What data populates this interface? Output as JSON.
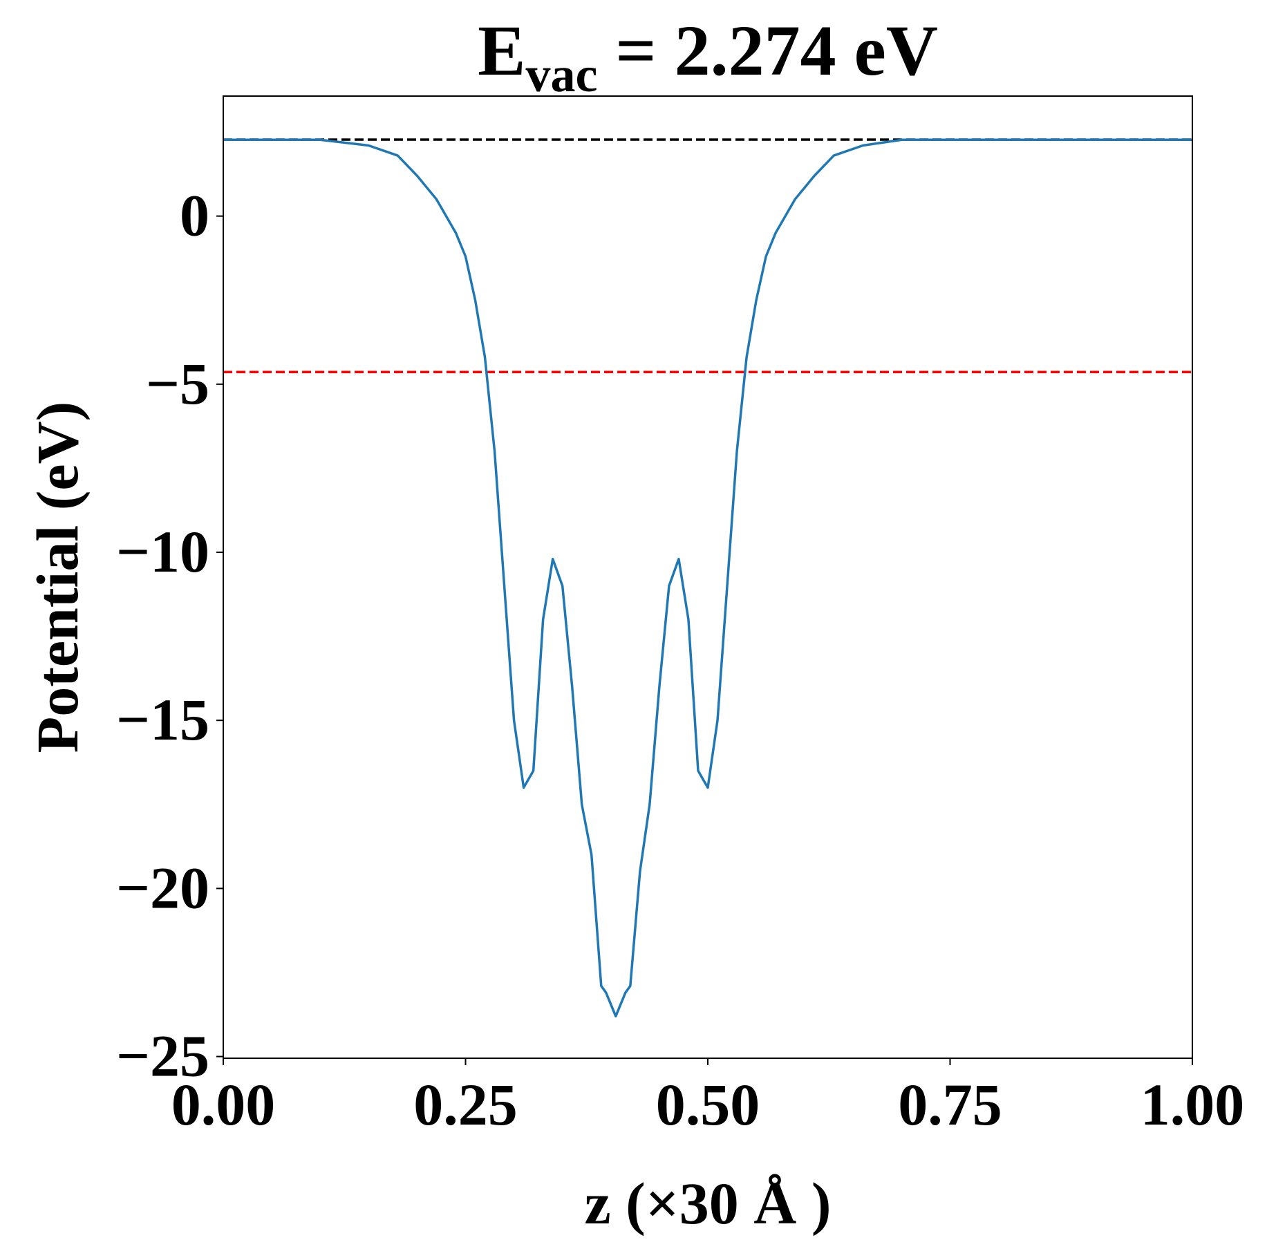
{
  "chart_data": {
    "type": "line",
    "title": {
      "main": "E",
      "sub": "vac",
      "rest": " = 2.274 eV"
    },
    "xlabel": "z (×30 Å )",
    "ylabel": "Potential (eV)",
    "xlim": [
      0,
      1
    ],
    "ylim": [
      -25.05,
      3.57
    ],
    "xticks": [
      {
        "value": 0,
        "label": "0.00"
      },
      {
        "value": 0.25,
        "label": "0.25"
      },
      {
        "value": 0.5,
        "label": "0.50"
      },
      {
        "value": 0.75,
        "label": "0.75"
      },
      {
        "value": 1,
        "label": "1.00"
      }
    ],
    "yticks": [
      {
        "value": -25,
        "label": "−25"
      },
      {
        "value": -20,
        "label": "−20"
      },
      {
        "value": -15,
        "label": "−15"
      },
      {
        "value": -10,
        "label": "−10"
      },
      {
        "value": -5,
        "label": "−5"
      },
      0
    ],
    "hlines": [
      {
        "value": 2.274,
        "color": "#000000"
      },
      {
        "value": -4.64,
        "color": "#ff0000"
      }
    ],
    "x": [
      0,
      0.05,
      0.1,
      0.15,
      0.18,
      0.2,
      0.22,
      0.24,
      0.25,
      0.26,
      0.27,
      0.28,
      0.29,
      0.3,
      0.31,
      0.32,
      0.33,
      0.34,
      0.35,
      0.36,
      0.37,
      0.38,
      0.39,
      0.395,
      0.405,
      0.415,
      0.42,
      0.43,
      0.44,
      0.45,
      0.46,
      0.47,
      0.48,
      0.49,
      0.5,
      0.51,
      0.52,
      0.53,
      0.54,
      0.55,
      0.56,
      0.57,
      0.59,
      0.61,
      0.63,
      0.66,
      0.7,
      0.8,
      0.9,
      1.0
    ],
    "series": [
      {
        "name": "potential",
        "color": "#1f77b4",
        "values": [
          2.27,
          2.27,
          2.27,
          2.1,
          1.8,
          1.2,
          0.5,
          -0.5,
          -1.2,
          -2.5,
          -4.2,
          -7,
          -11,
          -15,
          -17.0,
          -16.5,
          -12,
          -10.2,
          -11,
          -14,
          -17.5,
          -19,
          -22.9,
          -23.1,
          -23.8,
          -23.1,
          -22.9,
          -19.5,
          -17.5,
          -14,
          -11,
          -10.2,
          -12,
          -16.5,
          -17.0,
          -15,
          -11,
          -7,
          -4.2,
          -2.5,
          -1.2,
          -0.5,
          0.5,
          1.2,
          1.8,
          2.1,
          2.27,
          2.27,
          2.27,
          2.27
        ]
      }
    ]
  }
}
